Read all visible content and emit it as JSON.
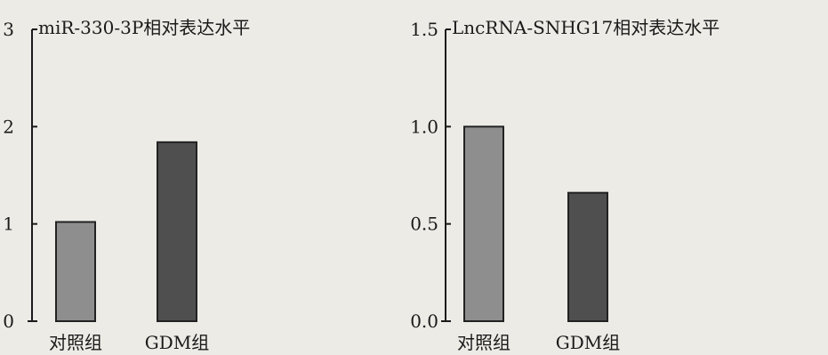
{
  "chart_data": [
    {
      "type": "bar",
      "title": "miR-330-3P相对表达水平",
      "categories": [
        "对照组",
        "GDM组"
      ],
      "values": [
        1.02,
        1.84
      ],
      "ylim": [
        0,
        3
      ],
      "yticks": [
        "0",
        "1",
        "2",
        "3"
      ],
      "xlabel": "",
      "ylabel": "",
      "grid": false,
      "bar_colors": [
        "#8e8e8e",
        "#4f4f4f"
      ]
    },
    {
      "type": "bar",
      "title": "LncRNA-SNHG17相对表达水平",
      "categories": [
        "对照组",
        "GDM组"
      ],
      "values": [
        1.0,
        0.66
      ],
      "ylim": [
        0,
        1.5
      ],
      "yticks": [
        "0.0",
        "0.5",
        "1.0",
        "1.5"
      ],
      "xlabel": "",
      "ylabel": "",
      "grid": false,
      "bar_colors": [
        "#8e8e8e",
        "#4f4f4f"
      ]
    }
  ]
}
